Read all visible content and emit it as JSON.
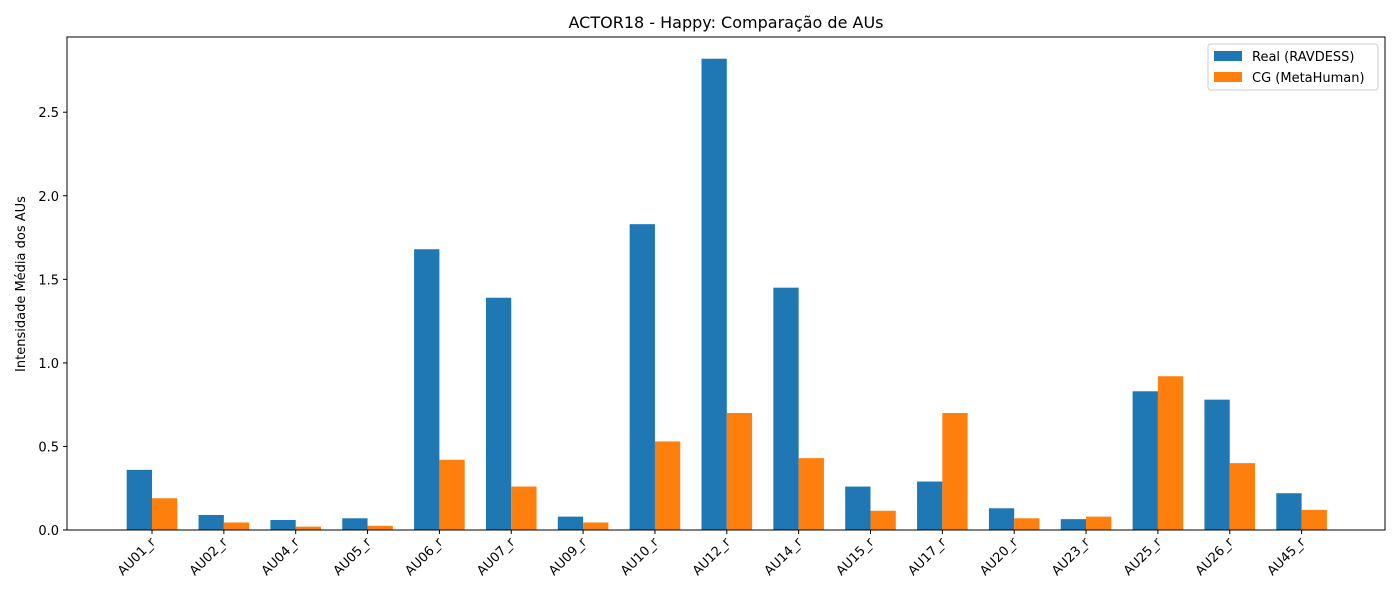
{
  "chart_data": {
    "type": "bar",
    "title": "ACTOR18 - Happy: Comparação de AUs",
    "xlabel": "",
    "ylabel": "Intensidade Média dos AUs",
    "categories": [
      "AU01_r",
      "AU02_r",
      "AU04_r",
      "AU05_r",
      "AU06_r",
      "AU07_r",
      "AU09_r",
      "AU10_r",
      "AU12_r",
      "AU14_r",
      "AU15_r",
      "AU17_r",
      "AU20_r",
      "AU23_r",
      "AU25_r",
      "AU26_r",
      "AU45_r"
    ],
    "series": [
      {
        "name": "Real (RAVDESS)",
        "color": "#1f77b4",
        "values": [
          0.36,
          0.09,
          0.06,
          0.07,
          1.68,
          1.39,
          0.08,
          1.83,
          2.82,
          1.45,
          0.26,
          0.29,
          0.13,
          0.065,
          0.83,
          0.78,
          0.22
        ]
      },
      {
        "name": "CG (MetaHuman)",
        "color": "#ff7f0e",
        "values": [
          0.19,
          0.045,
          0.02,
          0.025,
          0.42,
          0.26,
          0.045,
          0.53,
          0.7,
          0.43,
          0.115,
          0.7,
          0.07,
          0.08,
          0.92,
          0.4,
          0.12
        ]
      }
    ],
    "ylim": [
      0,
      2.95
    ],
    "yticks": [
      "0.0",
      "0.5",
      "1.0",
      "1.5",
      "2.0",
      "2.5"
    ],
    "grid": false,
    "legend_position": "top-right"
  }
}
